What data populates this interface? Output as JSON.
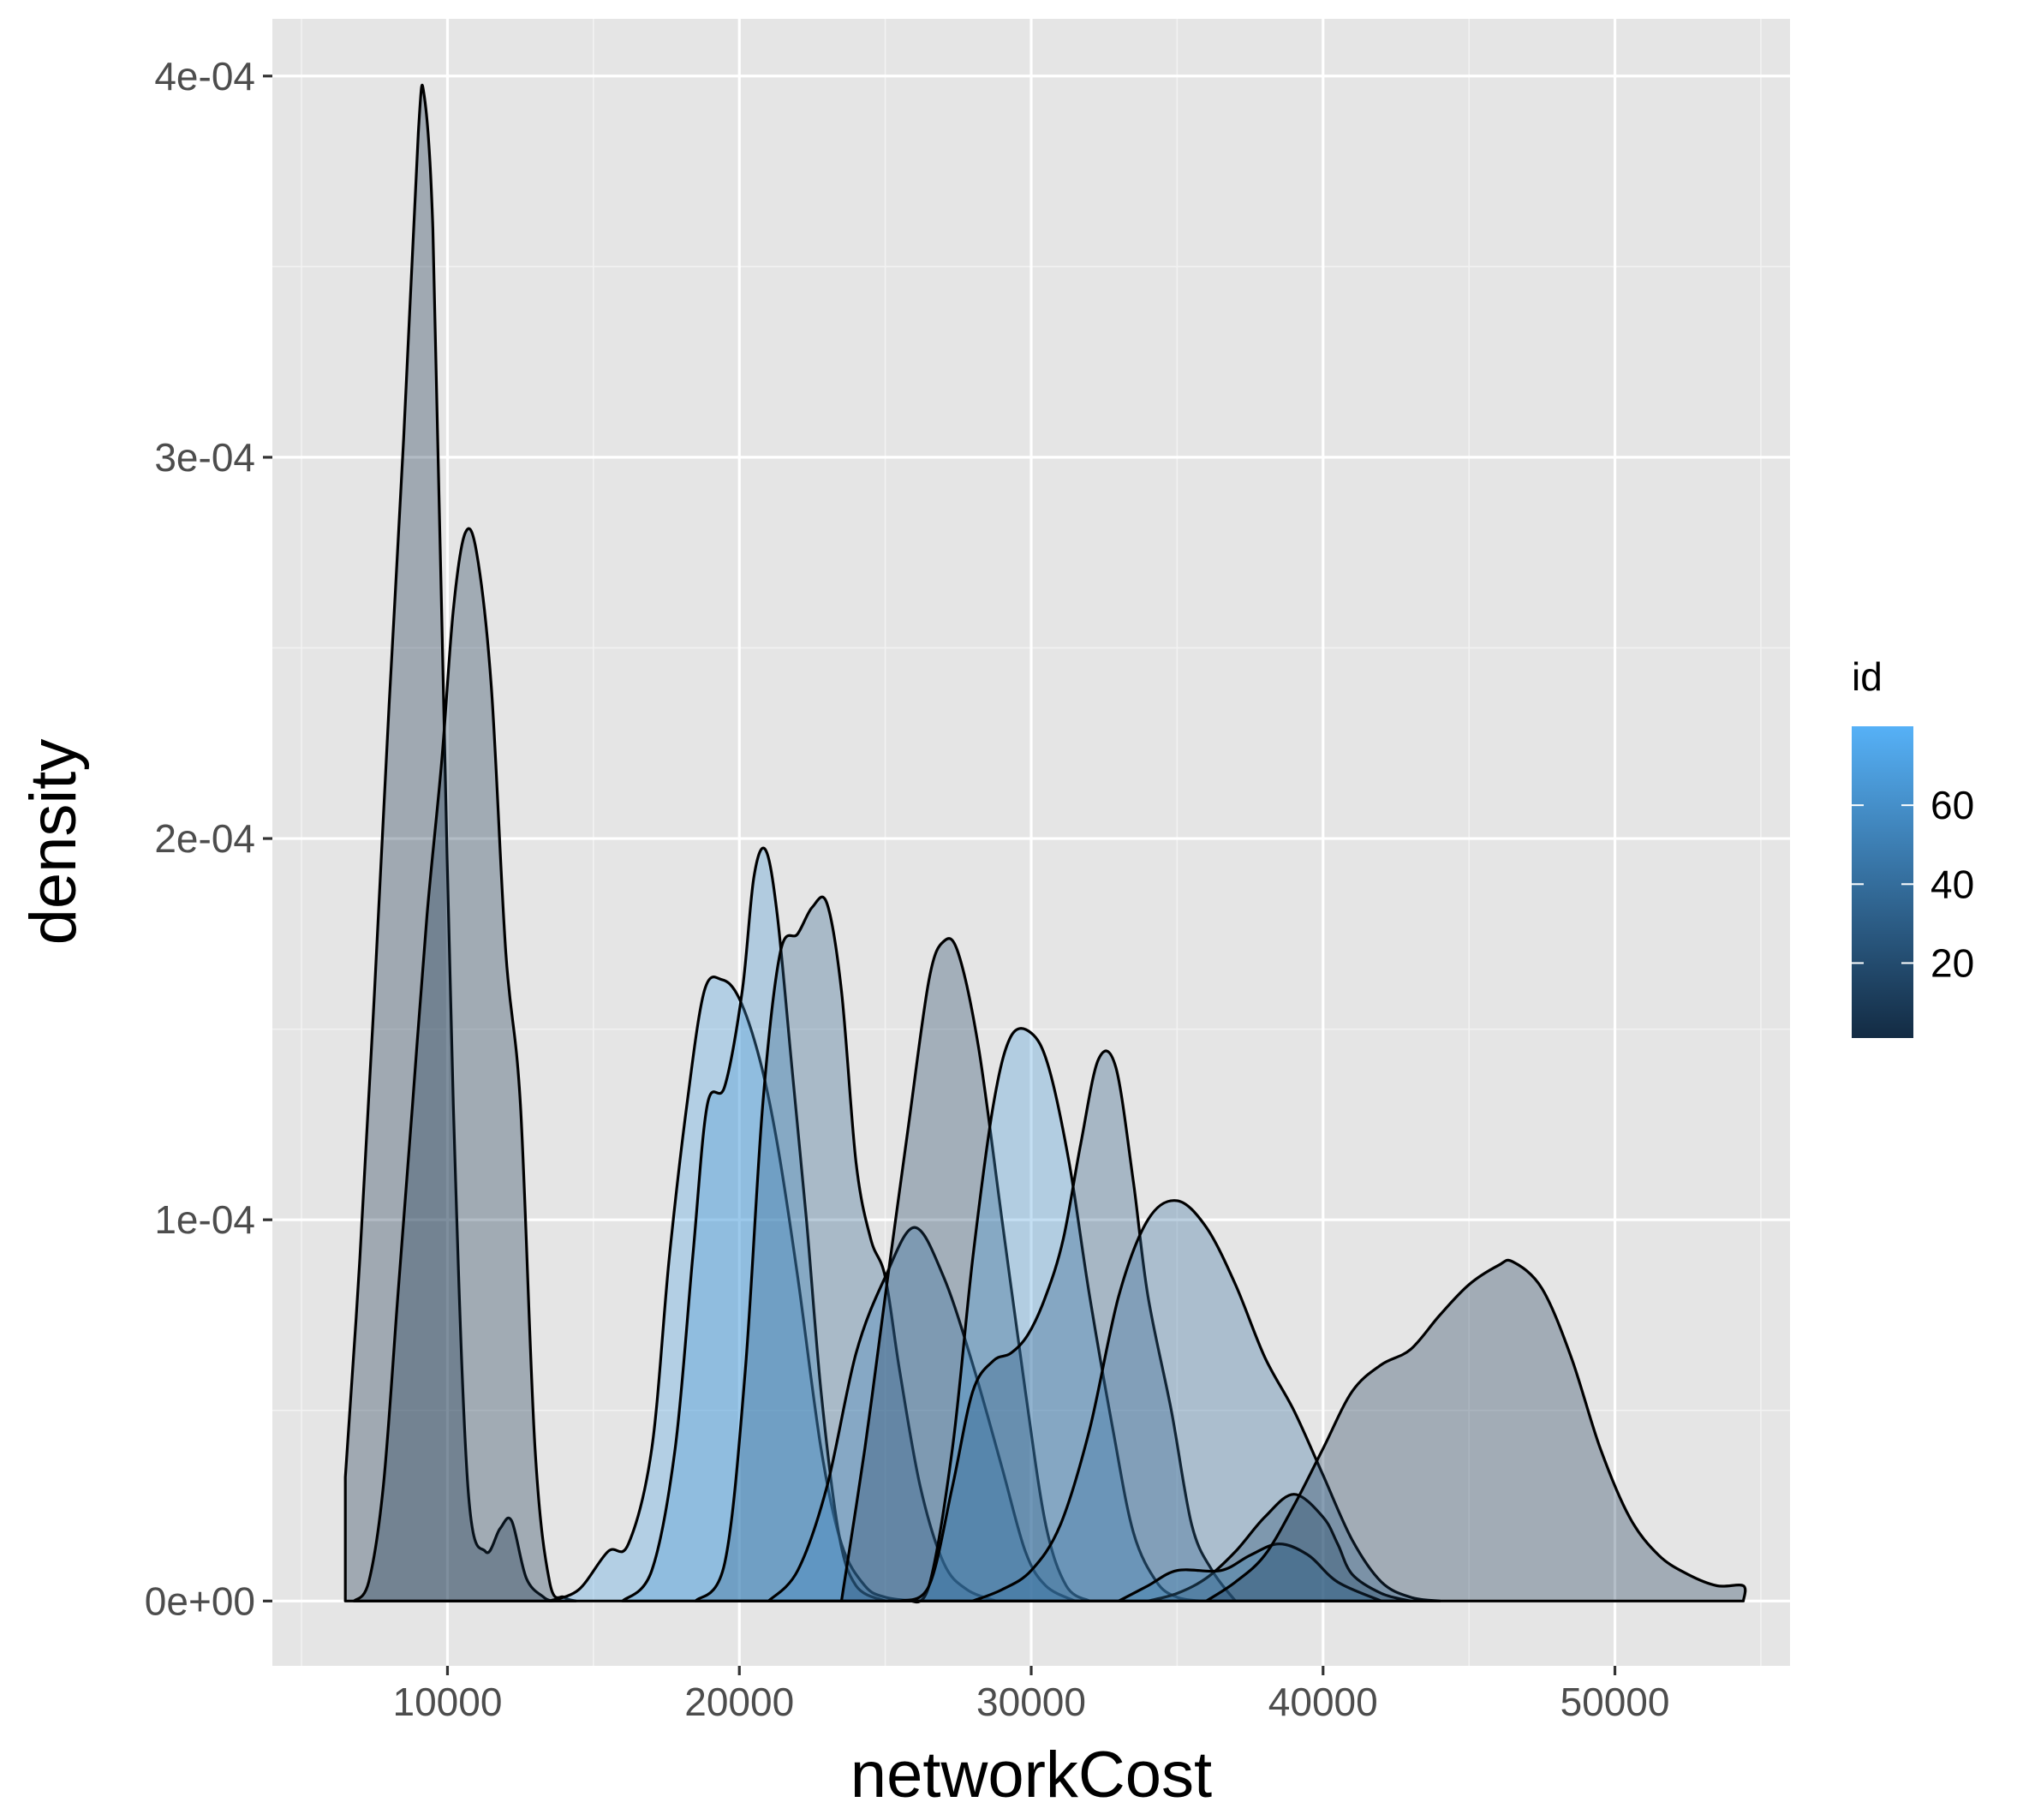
{
  "chart_data": {
    "type": "area",
    "subtype": "density",
    "xlabel": "networkCost",
    "ylabel": "density",
    "xlim": [
      4000,
      56000
    ],
    "ylim": [
      -1.7e-05,
      0.000415
    ],
    "x_ticks": [
      {
        "value": 10000,
        "label": "10000"
      },
      {
        "value": 20000,
        "label": "20000"
      },
      {
        "value": 30000,
        "label": "30000"
      },
      {
        "value": 40000,
        "label": "40000"
      },
      {
        "value": 50000,
        "label": "50000"
      }
    ],
    "y_ticks": [
      {
        "value": 0,
        "label": "0e+00"
      },
      {
        "value": 0.0001,
        "label": "1e-04"
      },
      {
        "value": 0.0002,
        "label": "2e-04"
      },
      {
        "value": 0.0003,
        "label": "3e-04"
      },
      {
        "value": 0.0004,
        "label": "4e-04"
      }
    ],
    "grid": true,
    "background": "#e5e5e5",
    "legend": {
      "title": "id",
      "position": "right",
      "type": "colorbar",
      "range": [
        1,
        80
      ],
      "low_color": "#132b43",
      "high_color": "#56b1f7",
      "ticks": [
        {
          "value": 20,
          "label": "20"
        },
        {
          "value": 40,
          "label": "40"
        },
        {
          "value": 60,
          "label": "60"
        }
      ]
    },
    "series": [
      {
        "id": 5,
        "points": [
          [
            6500,
            3.25e-05
          ],
          [
            7000,
            9e-05
          ],
          [
            7500,
            0.00016
          ],
          [
            8000,
            0.000235
          ],
          [
            8500,
            0.000305
          ],
          [
            9000,
            0.000385
          ],
          [
            9200,
            0.000395
          ],
          [
            9500,
            0.00036
          ],
          [
            9800,
            0.00026
          ],
          [
            10200,
            0.00013
          ],
          [
            10700,
            3e-05
          ],
          [
            11300,
            1.3e-05
          ],
          [
            11800,
            1.9e-05
          ],
          [
            12200,
            2.1e-05
          ],
          [
            12700,
            6e-06
          ],
          [
            13300,
            1e-06
          ],
          [
            13600,
            0
          ]
        ]
      },
      {
        "id": 8,
        "points": [
          [
            6800,
            0
          ],
          [
            7300,
            5e-06
          ],
          [
            7800,
            3e-05
          ],
          [
            8300,
            8e-05
          ],
          [
            8800,
            0.00013
          ],
          [
            9300,
            0.00018
          ],
          [
            9800,
            0.00022
          ],
          [
            10200,
            0.00026
          ],
          [
            10600,
            0.00028
          ],
          [
            11000,
            0.000275
          ],
          [
            11500,
            0.00024
          ],
          [
            12000,
            0.00017
          ],
          [
            12500,
            0.00013
          ],
          [
            13000,
            4e-05
          ],
          [
            13500,
            5e-06
          ],
          [
            14000,
            1e-06
          ],
          [
            14400,
            0
          ]
        ]
      },
      {
        "id": 72,
        "points": [
          [
            13500,
            0
          ],
          [
            14500,
            3e-06
          ],
          [
            15500,
            1.3e-05
          ],
          [
            16200,
            1.5e-05
          ],
          [
            17000,
            4e-05
          ],
          [
            17600,
            9e-05
          ],
          [
            18200,
            0.00013
          ],
          [
            18800,
            0.00016
          ],
          [
            19400,
            0.000163
          ],
          [
            20000,
            0.000158
          ],
          [
            20700,
            0.000142
          ],
          [
            21300,
            0.00012
          ],
          [
            22000,
            8.5e-05
          ],
          [
            22800,
            4e-05
          ],
          [
            23500,
            1.5e-05
          ],
          [
            24300,
            4e-06
          ],
          [
            25000,
            1e-06
          ],
          [
            26000,
            0
          ]
        ]
      },
      {
        "id": 65,
        "points": [
          [
            16000,
            0
          ],
          [
            17000,
            8e-06
          ],
          [
            17800,
            4e-05
          ],
          [
            18400,
            9e-05
          ],
          [
            18900,
            0.00013
          ],
          [
            19500,
            0.000135
          ],
          [
            20100,
            0.00016
          ],
          [
            20500,
            0.00019
          ],
          [
            20900,
            0.000197
          ],
          [
            21300,
            0.00018
          ],
          [
            21800,
            0.00014
          ],
          [
            22300,
            0.0001
          ],
          [
            22800,
            5.5e-05
          ],
          [
            23400,
            1.8e-05
          ],
          [
            24000,
            4e-06
          ],
          [
            25000,
            0
          ]
        ]
      },
      {
        "id": 35,
        "points": [
          [
            18500,
            0
          ],
          [
            19500,
            1e-05
          ],
          [
            20200,
            6e-05
          ],
          [
            20800,
            0.00013
          ],
          [
            21400,
            0.00017
          ],
          [
            22000,
            0.000175
          ],
          [
            22500,
            0.000182
          ],
          [
            23000,
            0.000183
          ],
          [
            23500,
            0.00016
          ],
          [
            24000,
            0.000115
          ],
          [
            24500,
            9.5e-05
          ],
          [
            25000,
            8.5e-05
          ],
          [
            25500,
            6e-05
          ],
          [
            26200,
            3e-05
          ],
          [
            27000,
            1e-05
          ],
          [
            27800,
            3e-06
          ],
          [
            28800,
            0
          ]
        ]
      },
      {
        "id": 55,
        "points": [
          [
            21000,
            0
          ],
          [
            22000,
            8e-06
          ],
          [
            23000,
            3e-05
          ],
          [
            24000,
            6.5e-05
          ],
          [
            25000,
            8.5e-05
          ],
          [
            26000,
            9.8e-05
          ],
          [
            27000,
            8.5e-05
          ],
          [
            28000,
            6.2e-05
          ],
          [
            29000,
            3.5e-05
          ],
          [
            29800,
            1.3e-05
          ],
          [
            30500,
            4e-06
          ],
          [
            31500,
            0
          ]
        ]
      },
      {
        "id": 15,
        "points": [
          [
            23500,
            0
          ],
          [
            24300,
            4e-05
          ],
          [
            25000,
            8e-05
          ],
          [
            25800,
            0.000125
          ],
          [
            26500,
            0.000163
          ],
          [
            27000,
            0.000173
          ],
          [
            27500,
            0.00017
          ],
          [
            28200,
            0.000145
          ],
          [
            29000,
            0.0001
          ],
          [
            29800,
            5.5e-05
          ],
          [
            30500,
            2e-05
          ],
          [
            31200,
            4e-06
          ],
          [
            32000,
            0
          ]
        ]
      },
      {
        "id": 68,
        "points": [
          [
            25800,
            0
          ],
          [
            26500,
            4e-06
          ],
          [
            27300,
            4e-05
          ],
          [
            28000,
            9e-05
          ],
          [
            28700,
            0.00013
          ],
          [
            29300,
            0.000148
          ],
          [
            30000,
            0.000149
          ],
          [
            30600,
            0.00014
          ],
          [
            31300,
            0.000115
          ],
          [
            32000,
            8e-05
          ],
          [
            32800,
            4.5e-05
          ],
          [
            33500,
            1.8e-05
          ],
          [
            34300,
            5e-06
          ],
          [
            35000,
            1e-06
          ],
          [
            35800,
            0
          ]
        ]
      },
      {
        "id": 30,
        "points": [
          [
            25500,
            0
          ],
          [
            26500,
            4e-06
          ],
          [
            27300,
            3e-05
          ],
          [
            28000,
            5.5e-05
          ],
          [
            28700,
            6.3e-05
          ],
          [
            29300,
            6.5e-05
          ],
          [
            29900,
            7e-05
          ],
          [
            30500,
            8e-05
          ],
          [
            31100,
            9.5e-05
          ],
          [
            31700,
            0.00012
          ],
          [
            32300,
            0.000142
          ],
          [
            32900,
            0.00014
          ],
          [
            33500,
            0.00011
          ],
          [
            34000,
            8e-05
          ],
          [
            34800,
            5e-05
          ],
          [
            35500,
            2e-05
          ],
          [
            36200,
            8e-06
          ],
          [
            37000,
            0
          ]
        ]
      },
      {
        "id": 42,
        "points": [
          [
            28000,
            0
          ],
          [
            29000,
            3e-06
          ],
          [
            30000,
            8e-06
          ],
          [
            31000,
            2e-05
          ],
          [
            32000,
            4.5e-05
          ],
          [
            33000,
            8e-05
          ],
          [
            34000,
            0.0001
          ],
          [
            35000,
            0.000105
          ],
          [
            36000,
            9.8e-05
          ],
          [
            37000,
            8.3e-05
          ],
          [
            38000,
            6.4e-05
          ],
          [
            39000,
            5e-05
          ],
          [
            40000,
            3.3e-05
          ],
          [
            41000,
            1.6e-05
          ],
          [
            42000,
            5e-06
          ],
          [
            43000,
            1e-06
          ],
          [
            44000,
            0
          ]
        ]
      },
      {
        "id": 20,
        "points": [
          [
            34000,
            0
          ],
          [
            35000,
            2e-06
          ],
          [
            36000,
            6e-06
          ],
          [
            37000,
            1.3e-05
          ],
          [
            38000,
            2.2e-05
          ],
          [
            39000,
            2.8e-05
          ],
          [
            40000,
            2.2e-05
          ],
          [
            40500,
            1.5e-05
          ],
          [
            41000,
            7e-06
          ],
          [
            42000,
            2e-06
          ],
          [
            43000,
            0
          ]
        ]
      },
      {
        "id": 48,
        "points": [
          [
            33000,
            0
          ],
          [
            34000,
            4e-06
          ],
          [
            35000,
            8e-06
          ],
          [
            36500,
            8e-06
          ],
          [
            37500,
            1.2e-05
          ],
          [
            38500,
            1.5e-05
          ],
          [
            39500,
            1.2e-05
          ],
          [
            40500,
            5e-06
          ],
          [
            42000,
            0
          ]
        ]
      },
      {
        "id": 10,
        "points": [
          [
            36000,
            0
          ],
          [
            37000,
            5e-06
          ],
          [
            38000,
            1.2e-05
          ],
          [
            39000,
            2.5e-05
          ],
          [
            40000,
            4e-05
          ],
          [
            41000,
            5.5e-05
          ],
          [
            42000,
            6.2e-05
          ],
          [
            43000,
            6.6e-05
          ],
          [
            44000,
            7.5e-05
          ],
          [
            45000,
            8.3e-05
          ],
          [
            46000,
            8.8e-05
          ],
          [
            46500,
            8.9e-05
          ],
          [
            47500,
            8.2e-05
          ],
          [
            48500,
            6.4e-05
          ],
          [
            49500,
            4e-05
          ],
          [
            50500,
            2.2e-05
          ],
          [
            51500,
            1.2e-05
          ],
          [
            52500,
            7e-06
          ],
          [
            53500,
            4e-06
          ],
          [
            54400,
            4e-06
          ],
          [
            54400,
            0
          ]
        ]
      }
    ]
  }
}
